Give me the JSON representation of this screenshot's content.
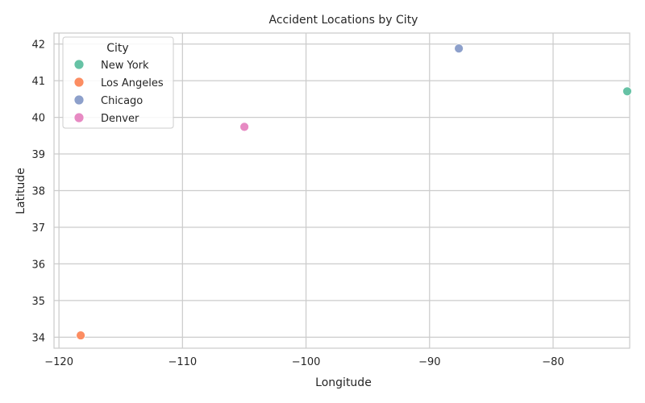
{
  "chart_data": {
    "type": "scatter",
    "title": "Accident Locations by City",
    "xlabel": "Longitude",
    "ylabel": "Latitude",
    "xlim": [
      -120.4,
      -73.8
    ],
    "ylim": [
      33.7,
      42.3
    ],
    "xticks": [
      -120,
      -110,
      -100,
      -90,
      -80
    ],
    "xtick_labels": [
      "−120",
      "−110",
      "−100",
      "−90",
      "−80"
    ],
    "yticks": [
      34,
      35,
      36,
      37,
      38,
      39,
      40,
      41,
      42
    ],
    "ytick_labels": [
      "34",
      "35",
      "36",
      "37",
      "38",
      "39",
      "40",
      "41",
      "42"
    ],
    "grid": true,
    "legend": {
      "title": "City",
      "placement": "top-left"
    },
    "series": [
      {
        "name": "New York",
        "color": "#66c2a5",
        "points": [
          {
            "x": -74.0,
            "y": 40.71
          }
        ]
      },
      {
        "name": "Los Angeles",
        "color": "#fc8d62",
        "points": [
          {
            "x": -118.24,
            "y": 34.05
          }
        ]
      },
      {
        "name": "Chicago",
        "color": "#8da0cb",
        "points": [
          {
            "x": -87.63,
            "y": 41.88
          }
        ]
      },
      {
        "name": "Denver",
        "color": "#e78ac3",
        "points": [
          {
            "x": -104.99,
            "y": 39.74
          }
        ]
      }
    ],
    "colors": {
      "grid": "#cccccc",
      "frame": "#cccccc",
      "background": "#ffffff"
    }
  }
}
